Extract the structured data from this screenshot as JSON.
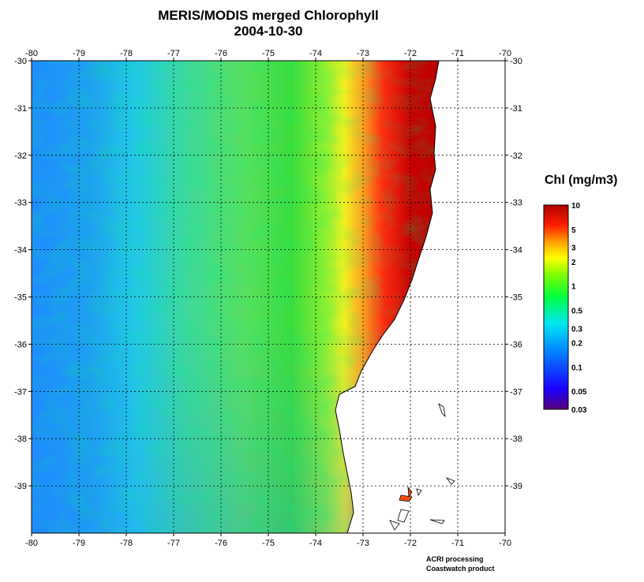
{
  "title": "MERIS/MODIS merged Chlorophyll",
  "date": "2004-10-30",
  "map": {
    "lon_range": [
      -80,
      -70
    ],
    "lat_range": [
      -40,
      -30
    ],
    "lon_ticks": [
      -80,
      -79,
      -78,
      -77,
      -76,
      -75,
      -74,
      -73,
      -72,
      -71,
      -70
    ],
    "lat_ticks": [
      -30,
      -31,
      -32,
      -33,
      -34,
      -35,
      -36,
      -37,
      -38,
      -39
    ],
    "grid": "dotted",
    "land_color": "#ffffff",
    "coastline_color": "#000000"
  },
  "colorbar": {
    "title": "Chl (mg/m3)",
    "labels": [
      "10",
      "5",
      "3",
      "2",
      "1",
      "0.5",
      "0.3",
      "0.2",
      "0.1",
      "0.05",
      "0.03"
    ],
    "label_values": [
      10,
      5,
      3,
      2,
      1,
      0.5,
      0.3,
      0.2,
      0.1,
      0.05,
      0.03
    ],
    "range": [
      0.03,
      10
    ],
    "scale": "log",
    "colors": [
      "#5a007a",
      "#1400ff",
      "#00b0ff",
      "#00ffd0",
      "#00ff00",
      "#b0ff00",
      "#ffff00",
      "#ffa000",
      "#ff2000",
      "#b80000"
    ]
  },
  "credits": {
    "line1": "ACRI processing",
    "line2": "Coastwatch product"
  }
}
